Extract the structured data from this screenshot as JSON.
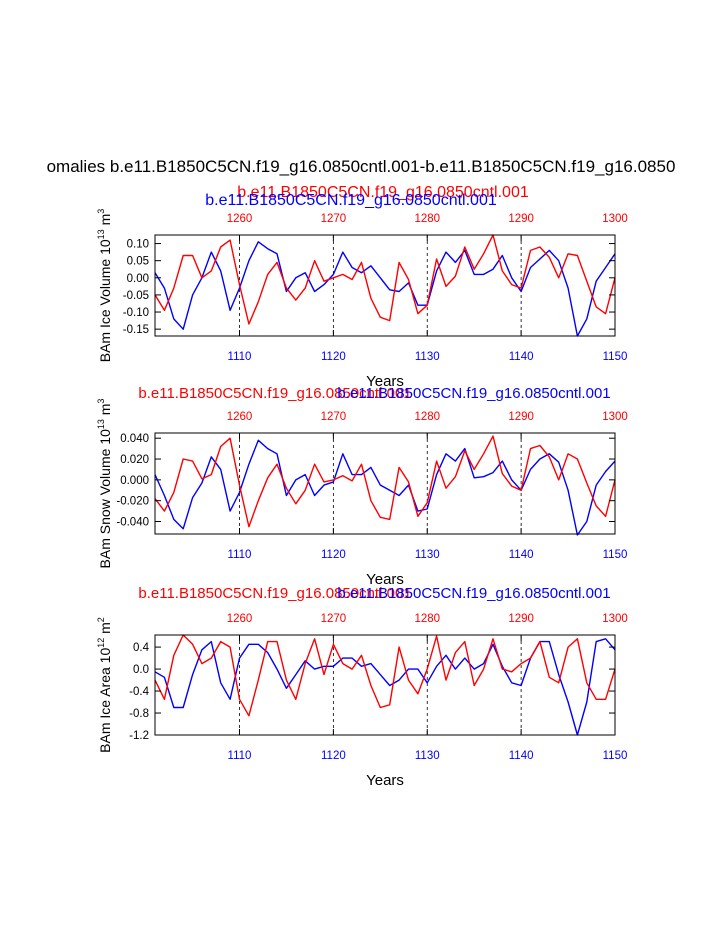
{
  "main_title": "omalies b.e11.B1850C5CN.f19_g16.0850cntl.001-b.e11.B1850C5CN.f19_g16.0850",
  "top_captions": {
    "red": "b.e11.B1850C5CN.f19_g16.0850cntl.001",
    "blue": "b.e11.B1850C5CN.f19_g16.0850cntl.001"
  },
  "colors": {
    "blue_series": "#0000ff",
    "red_series": "#ff0000",
    "axis": "#000000"
  },
  "chart_data": [
    {
      "type": "line",
      "panel": "ice-volume",
      "ylabel": "BAm Ice Volume 10",
      "ylabel_exp": "13",
      "ylabel_unit": " m",
      "ylabel_unit_exp": "3",
      "xlabel": "Years",
      "ylim": [
        -0.17,
        0.125
      ],
      "yticks": [
        0.1,
        0.05,
        0.0,
        -0.05,
        -0.1,
        -0.15
      ],
      "ytick_labels": [
        "0.10",
        "0.05",
        "0.00",
        "-0.05",
        "-0.10",
        "-0.15"
      ],
      "xlim_bottom": [
        1101,
        1150
      ],
      "xticks_bottom": [
        "1110",
        "1120",
        "1130",
        "1140",
        "1150"
      ],
      "xlim_top": [
        1251,
        1300
      ],
      "xticks_top": [
        "1260",
        "1270",
        "1280",
        "1290",
        "1300"
      ],
      "vlines_at": [
        1110,
        1120,
        1130,
        1140
      ],
      "caption_red": "b.e11.B1850C5CN.f19_g16.0850cntl.001",
      "caption_blue": "b.e11.B1850C5CN.f19_g16.0850cntl.001",
      "series": [
        {
          "name": "b.e11.B1850C5CN.f19_g16.0850cntl.001",
          "axis": "bottom",
          "color": "#0000ff",
          "x": [
            1101,
            1102,
            1103,
            1104,
            1105,
            1106,
            1107,
            1108,
            1109,
            1110,
            1111,
            1112,
            1113,
            1114,
            1115,
            1116,
            1117,
            1118,
            1119,
            1120,
            1121,
            1122,
            1123,
            1124,
            1125,
            1126,
            1127,
            1128,
            1129,
            1130,
            1131,
            1132,
            1133,
            1134,
            1135,
            1136,
            1137,
            1138,
            1139,
            1140,
            1141,
            1142,
            1143,
            1144,
            1145,
            1146,
            1147,
            1148,
            1149,
            1150
          ],
          "y": [
            0.015,
            -0.03,
            -0.12,
            -0.15,
            -0.05,
            0.0,
            0.075,
            0.02,
            -0.095,
            -0.03,
            0.05,
            0.105,
            0.085,
            0.07,
            -0.04,
            0.0,
            0.015,
            -0.04,
            -0.02,
            0.01,
            0.075,
            0.03,
            0.015,
            0.035,
            0.0,
            -0.035,
            -0.04,
            -0.015,
            -0.08,
            -0.08,
            0.02,
            0.075,
            0.045,
            0.08,
            0.01,
            0.01,
            0.025,
            0.065,
            0.0,
            -0.04,
            0.03,
            0.055,
            0.08,
            0.05,
            -0.03,
            -0.17,
            -0.12,
            -0.01,
            0.03,
            0.07
          ]
        },
        {
          "name": "b.e11.B1850C5CN.f19_g16.0850cntl.001",
          "axis": "top",
          "color": "#ff0000",
          "x": [
            1251,
            1252,
            1253,
            1254,
            1255,
            1256,
            1257,
            1258,
            1259,
            1260,
            1261,
            1262,
            1263,
            1264,
            1265,
            1266,
            1267,
            1268,
            1269,
            1270,
            1271,
            1272,
            1273,
            1274,
            1275,
            1276,
            1277,
            1278,
            1279,
            1280,
            1281,
            1282,
            1283,
            1284,
            1285,
            1286,
            1287,
            1288,
            1289,
            1290,
            1291,
            1292,
            1293,
            1294,
            1295,
            1296,
            1297,
            1298,
            1299,
            1300
          ],
          "y": [
            -0.05,
            -0.095,
            -0.03,
            0.065,
            0.065,
            0.0,
            0.02,
            0.09,
            0.11,
            -0.02,
            -0.135,
            -0.07,
            0.01,
            0.045,
            -0.03,
            -0.065,
            -0.03,
            0.05,
            -0.01,
            0.0,
            0.01,
            -0.005,
            0.045,
            -0.06,
            -0.115,
            -0.125,
            0.045,
            -0.005,
            -0.105,
            -0.08,
            0.055,
            -0.025,
            0.005,
            0.09,
            0.025,
            0.07,
            0.125,
            0.02,
            -0.02,
            -0.03,
            0.08,
            0.09,
            0.06,
            0.0,
            0.07,
            0.065,
            -0.01,
            -0.085,
            -0.105,
            0.0
          ]
        }
      ]
    },
    {
      "type": "line",
      "panel": "snow-volume",
      "ylabel": "BAm Snow Volume 10",
      "ylabel_exp": "13",
      "ylabel_unit": " m",
      "ylabel_unit_exp": "3",
      "xlabel": "Years",
      "ylim": [
        -0.052,
        0.045
      ],
      "yticks": [
        0.04,
        0.02,
        0.0,
        -0.02,
        -0.04
      ],
      "ytick_labels": [
        "0.040",
        "0.020",
        "0.000",
        "-0.020",
        "-0.040"
      ],
      "xlim_bottom": [
        1101,
        1150
      ],
      "xticks_bottom": [
        "1110",
        "1120",
        "1130",
        "1140",
        "1150"
      ],
      "xlim_top": [
        1251,
        1300
      ],
      "xticks_top": [
        "1260",
        "1270",
        "1280",
        "1290",
        "1300"
      ],
      "vlines_at": [
        1110,
        1120,
        1130,
        1140
      ],
      "caption_red": "b.e11.B1850C5CN.f19_g16.0850cntl.001",
      "caption_blue": "b.e11.B1850C5CN.f19_g16.0850cntl.001",
      "series": [
        {
          "name": "b.e11.B1850C5CN.f19_g16.0850cntl.001",
          "axis": "bottom",
          "color": "#0000ff",
          "x": [
            1101,
            1102,
            1103,
            1104,
            1105,
            1106,
            1107,
            1108,
            1109,
            1110,
            1111,
            1112,
            1113,
            1114,
            1115,
            1116,
            1117,
            1118,
            1119,
            1120,
            1121,
            1122,
            1123,
            1124,
            1125,
            1126,
            1127,
            1128,
            1129,
            1130,
            1131,
            1132,
            1133,
            1134,
            1135,
            1136,
            1137,
            1138,
            1139,
            1140,
            1141,
            1142,
            1143,
            1144,
            1145,
            1146,
            1147,
            1148,
            1149,
            1150
          ],
          "y": [
            0.005,
            -0.015,
            -0.038,
            -0.047,
            -0.017,
            -0.003,
            0.022,
            0.01,
            -0.03,
            -0.012,
            0.015,
            0.038,
            0.03,
            0.025,
            -0.015,
            0.0,
            0.005,
            -0.015,
            -0.005,
            -0.002,
            0.025,
            0.005,
            0.005,
            0.012,
            -0.005,
            -0.01,
            -0.015,
            -0.005,
            -0.03,
            -0.028,
            0.005,
            0.025,
            0.018,
            0.03,
            0.002,
            0.003,
            0.007,
            0.018,
            0.0,
            -0.01,
            0.01,
            0.02,
            0.025,
            0.017,
            -0.01,
            -0.053,
            -0.04,
            -0.005,
            0.008,
            0.018
          ]
        },
        {
          "name": "b.e11.B1850C5CN.f19_g16.0850cntl.001",
          "axis": "top",
          "color": "#ff0000",
          "x": [
            1251,
            1252,
            1253,
            1254,
            1255,
            1256,
            1257,
            1258,
            1259,
            1260,
            1261,
            1262,
            1263,
            1264,
            1265,
            1266,
            1267,
            1268,
            1269,
            1270,
            1271,
            1272,
            1273,
            1274,
            1275,
            1276,
            1277,
            1278,
            1279,
            1280,
            1281,
            1282,
            1283,
            1284,
            1285,
            1286,
            1287,
            1288,
            1289,
            1290,
            1291,
            1292,
            1293,
            1294,
            1295,
            1296,
            1297,
            1298,
            1299,
            1300
          ],
          "y": [
            -0.018,
            -0.03,
            -0.012,
            0.02,
            0.018,
            0.001,
            0.005,
            0.032,
            0.04,
            -0.005,
            -0.045,
            -0.02,
            0.002,
            0.015,
            -0.008,
            -0.023,
            -0.01,
            0.015,
            -0.002,
            0.0,
            0.004,
            -0.001,
            0.015,
            -0.02,
            -0.036,
            -0.038,
            0.012,
            -0.002,
            -0.035,
            -0.022,
            0.018,
            -0.008,
            0.003,
            0.028,
            0.01,
            0.025,
            0.042,
            0.006,
            -0.006,
            -0.01,
            0.03,
            0.033,
            0.022,
            0.0,
            0.025,
            0.02,
            -0.003,
            -0.025,
            -0.035,
            0.0
          ]
        }
      ]
    },
    {
      "type": "line",
      "panel": "ice-area",
      "ylabel": "BAm Ice Area 10",
      "ylabel_exp": "12",
      "ylabel_unit": " m",
      "ylabel_unit_exp": "2",
      "xlabel": "Years",
      "ylim": [
        -1.2,
        0.62
      ],
      "yticks": [
        0.4,
        0.0,
        -0.4,
        -0.8,
        -1.2
      ],
      "ytick_labels": [
        "0.4",
        "0.0",
        "-0.4",
        "-0.8",
        "-1.2"
      ],
      "xlim_bottom": [
        1101,
        1150
      ],
      "xticks_bottom": [
        "1110",
        "1120",
        "1130",
        "1140",
        "1150"
      ],
      "xlim_top": [
        1251,
        1300
      ],
      "xticks_top": [
        "1260",
        "1270",
        "1280",
        "1290",
        "1300"
      ],
      "vlines_at": [
        1110,
        1120,
        1130,
        1140
      ],
      "caption_red": "b.e11.B1850C5CN.f19_g16.0850cntl.001",
      "caption_blue": "b.e11.B1850C5CN.f19_g16.0850cntl.001",
      "series": [
        {
          "name": "b.e11.B1850C5CN.f19_g16.0850cntl.001",
          "axis": "bottom",
          "color": "#0000ff",
          "x": [
            1101,
            1102,
            1103,
            1104,
            1105,
            1106,
            1107,
            1108,
            1109,
            1110,
            1111,
            1112,
            1113,
            1114,
            1115,
            1116,
            1117,
            1118,
            1119,
            1120,
            1121,
            1122,
            1123,
            1124,
            1125,
            1126,
            1127,
            1128,
            1129,
            1130,
            1131,
            1132,
            1133,
            1134,
            1135,
            1136,
            1137,
            1138,
            1139,
            1140,
            1141,
            1142,
            1143,
            1144,
            1145,
            1146,
            1147,
            1148,
            1149,
            1150
          ],
          "y": [
            -0.05,
            -0.15,
            -0.7,
            -0.7,
            -0.1,
            0.35,
            0.5,
            -0.25,
            -0.55,
            0.2,
            0.45,
            0.45,
            0.3,
            0.0,
            -0.35,
            -0.1,
            0.15,
            0.0,
            0.05,
            0.05,
            0.2,
            0.2,
            0.05,
            0.1,
            -0.1,
            -0.3,
            -0.2,
            0.0,
            0.0,
            -0.25,
            0.05,
            0.25,
            0.0,
            0.2,
            0.0,
            0.1,
            0.45,
            0.05,
            -0.25,
            -0.3,
            0.2,
            0.5,
            0.5,
            -0.1,
            -0.6,
            -1.2,
            -0.6,
            0.5,
            0.55,
            0.35
          ]
        },
        {
          "name": "b.e11.B1850C5CN.f19_g16.0850cntl.001",
          "axis": "top",
          "color": "#ff0000",
          "x": [
            1251,
            1252,
            1253,
            1254,
            1255,
            1256,
            1257,
            1258,
            1259,
            1260,
            1261,
            1262,
            1263,
            1264,
            1265,
            1266,
            1267,
            1268,
            1269,
            1270,
            1271,
            1272,
            1273,
            1274,
            1275,
            1276,
            1277,
            1278,
            1279,
            1280,
            1281,
            1282,
            1283,
            1284,
            1285,
            1286,
            1287,
            1288,
            1289,
            1290,
            1291,
            1292,
            1293,
            1294,
            1295,
            1296,
            1297,
            1298,
            1299,
            1300
          ],
          "y": [
            -0.2,
            -0.55,
            0.25,
            0.62,
            0.45,
            0.1,
            0.2,
            0.5,
            0.4,
            -0.55,
            -0.85,
            -0.2,
            0.5,
            0.5,
            -0.2,
            -0.55,
            0.1,
            0.55,
            -0.1,
            0.45,
            0.1,
            0.0,
            0.25,
            -0.3,
            -0.7,
            -0.65,
            0.4,
            -0.2,
            -0.45,
            0.0,
            0.6,
            -0.2,
            0.3,
            0.5,
            -0.3,
            0.0,
            0.55,
            0.0,
            -0.05,
            0.1,
            0.2,
            0.5,
            -0.15,
            -0.25,
            0.4,
            0.55,
            -0.25,
            -0.55,
            -0.55,
            0.0
          ]
        }
      ]
    }
  ]
}
